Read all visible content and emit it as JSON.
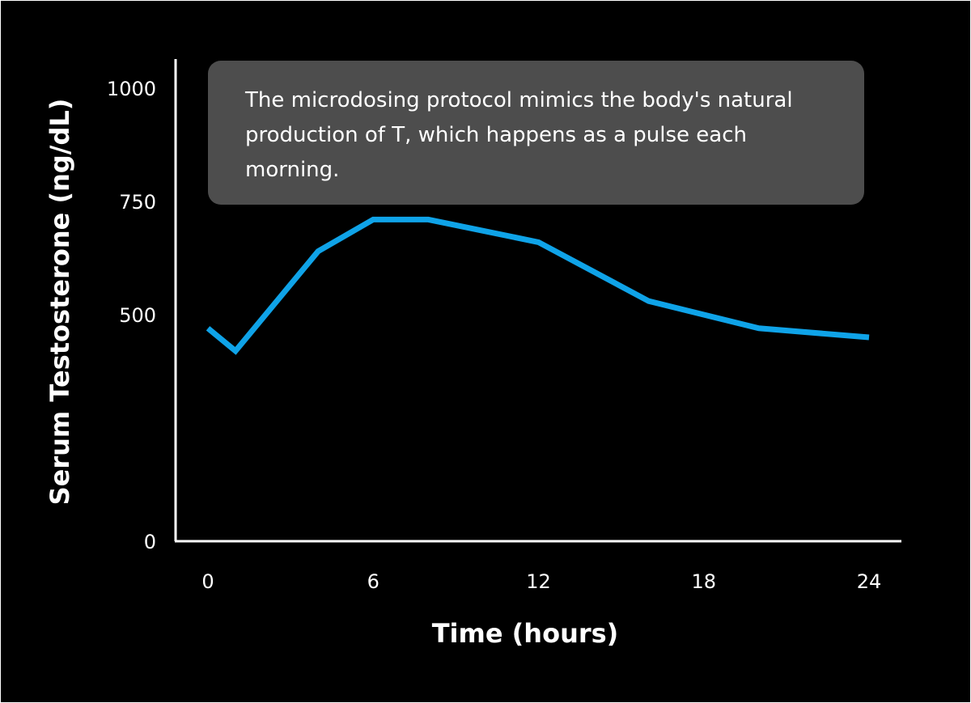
{
  "annotation": {
    "text": "The microdosing protocol mimics the body's natural production of T, which happens as a pulse each morning."
  },
  "colors": {
    "background": "#000000",
    "axis": "#ffffff",
    "line": "#0fa3e8",
    "annotation_box": "#4d4d4d",
    "text": "#ffffff"
  },
  "chart_data": {
    "type": "line",
    "title": "",
    "xlabel": "Time (hours)",
    "ylabel": "Serum Testosterone (ng/dL)",
    "xlim": [
      0,
      24
    ],
    "ylim": [
      0,
      1000
    ],
    "x_ticks": [
      0,
      6,
      12,
      18,
      24
    ],
    "x_tick_labels": [
      "0",
      "6",
      "12",
      "18",
      24
    ],
    "y_ticks": [
      0,
      500,
      750,
      1000
    ],
    "y_tick_labels": [
      "0",
      "500",
      "750",
      "1000"
    ],
    "grid": false,
    "legend": "none",
    "series": [
      {
        "x": [
          0,
          1,
          4,
          6,
          8,
          12,
          16,
          20,
          24
        ],
        "y": [
          470,
          420,
          640,
          710,
          710,
          660,
          530,
          470,
          450
        ]
      }
    ]
  }
}
